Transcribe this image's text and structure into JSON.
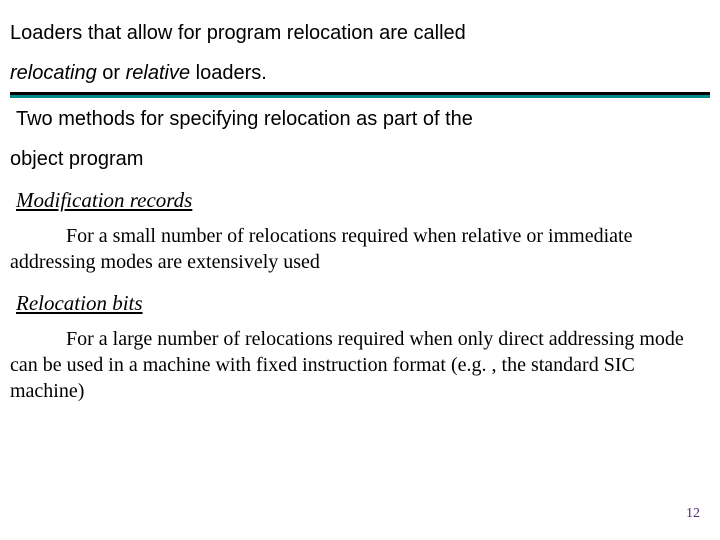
{
  "slide": {
    "line1": "Loaders that allow for program relocation are called",
    "line2_prefix": "relocating",
    "line2_mid": " or ",
    "line2_italic2": "relative",
    "line2_suffix": " loaders.",
    "line3": "Two methods for specifying relocation as part of the",
    "line4": "object program",
    "sub1": "Modification records",
    "body1": "For a small number of relocations required when relative or immediate addressing modes are extensively used",
    "sub2": "Relocation bits",
    "body2": "For a large number of relocations required when only direct addressing mode can be used in a machine with fixed instruction format (e.g. , the standard SIC machine)",
    "page_number": "12"
  },
  "colors": {
    "divider_top": "#000000",
    "divider_bottom": "#008b8b",
    "page_num": "#4a2d7a",
    "background": "#ffffff",
    "text": "#000000"
  }
}
